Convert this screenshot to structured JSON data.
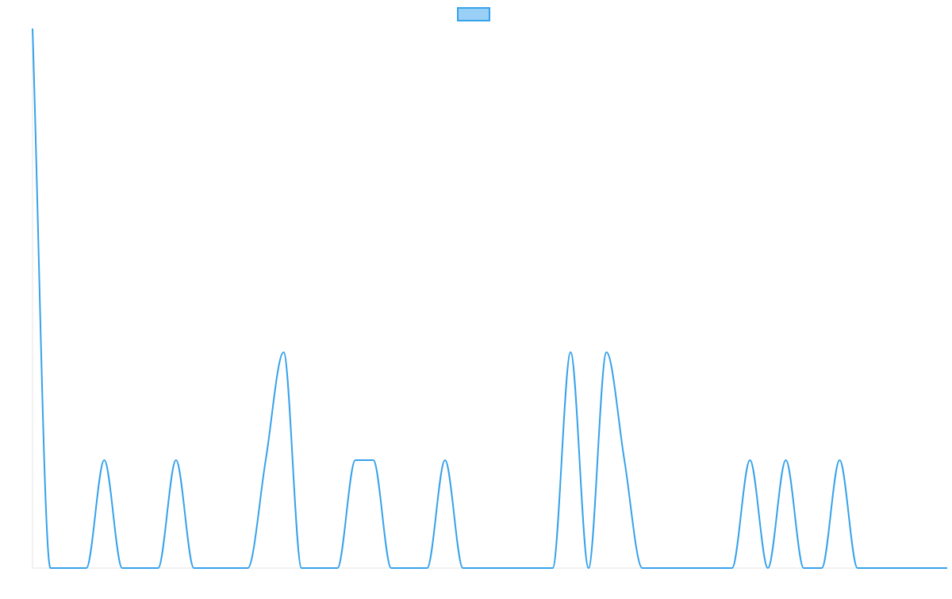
{
  "chart_data": {
    "type": "line",
    "title": "",
    "xlabel": "",
    "ylabel": "",
    "grid": false,
    "legend_placement": "top-center",
    "series_color": "#36a2eb",
    "series_fill": "#9ad0f5",
    "xlim": [
      0,
      51
    ],
    "ylim": [
      0,
      3
    ],
    "series": [
      {
        "values": [
          3,
          0,
          0,
          0,
          0.6,
          0,
          0,
          0,
          0.6,
          0,
          0,
          0,
          0,
          0.6,
          1.2,
          0,
          0,
          0,
          0.6,
          0.6,
          0,
          0,
          0,
          0.6,
          0,
          0,
          0,
          0,
          0,
          0,
          1.2,
          0,
          1.2,
          0.6,
          0,
          0,
          0,
          0,
          0,
          0,
          0.6,
          0,
          0.6,
          0,
          0,
          0.6,
          0,
          0,
          0,
          0,
          0,
          0
        ]
      }
    ]
  }
}
